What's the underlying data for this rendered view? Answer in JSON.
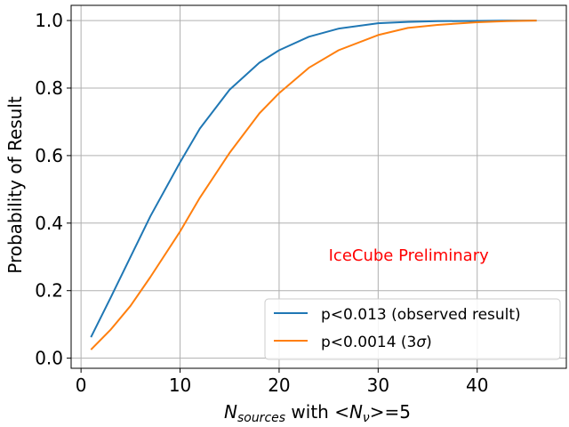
{
  "chart_data": {
    "type": "line",
    "title": "",
    "xlabel_parts": {
      "n_symbol": "N",
      "n_sub": "sources",
      "mid": " with <",
      "nu_symbol": "N",
      "nu_sub": "ν",
      "tail": ">=5"
    },
    "ylabel": "Probability of Result",
    "xlim": [
      -1,
      49
    ],
    "ylim": [
      -0.03,
      1.045
    ],
    "xticks": [
      0,
      10,
      20,
      30,
      40
    ],
    "yticks": [
      0.0,
      0.2,
      0.4,
      0.6,
      0.8,
      1.0
    ],
    "ytick_labels": [
      "0.0",
      "0.2",
      "0.4",
      "0.6",
      "0.8",
      "1.0"
    ],
    "grid": true,
    "legend_location": "lower-right",
    "annotation": {
      "text": "IceCube Preliminary",
      "x": 25,
      "y": 0.305,
      "color": "#ff0000"
    },
    "series": [
      {
        "name": "p<0.013 (observed result)",
        "color": "#1f77b4",
        "x": [
          1,
          3,
          5,
          7,
          10,
          12,
          15,
          18,
          20,
          23,
          26,
          30,
          33,
          36,
          40,
          43,
          46
        ],
        "y": [
          0.062,
          0.18,
          0.3,
          0.42,
          0.58,
          0.68,
          0.795,
          0.875,
          0.912,
          0.952,
          0.976,
          0.992,
          0.996,
          0.998,
          0.999,
          1.0,
          1.0
        ]
      },
      {
        "name_prefix": "p<0.0014 (3",
        "name_symbol": "σ",
        "name_suffix": ")",
        "color": "#ff7f0e",
        "x": [
          1,
          3,
          5,
          7,
          10,
          12,
          15,
          18,
          20,
          23,
          26,
          30,
          33,
          36,
          40,
          43,
          46
        ],
        "y": [
          0.025,
          0.085,
          0.155,
          0.24,
          0.375,
          0.475,
          0.608,
          0.725,
          0.785,
          0.86,
          0.912,
          0.957,
          0.978,
          0.987,
          0.995,
          0.998,
          1.0
        ]
      }
    ]
  }
}
